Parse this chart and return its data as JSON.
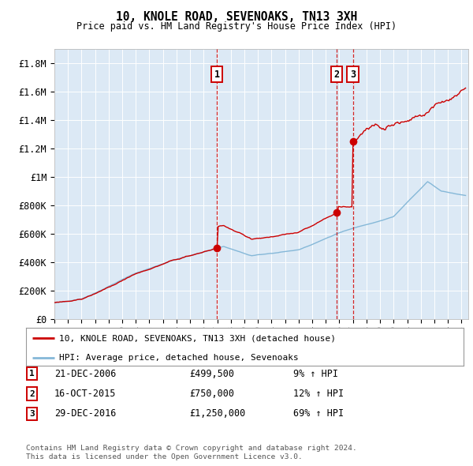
{
  "title": "10, KNOLE ROAD, SEVENOAKS, TN13 3XH",
  "subtitle": "Price paid vs. HM Land Registry's House Price Index (HPI)",
  "background_color": "#dce9f5",
  "hpi_line_color": "#85b8d8",
  "price_line_color": "#cc0000",
  "dashed_line_color": "#cc0000",
  "ylim_min": 0,
  "ylim_max": 1900000,
  "yticks": [
    0,
    200000,
    400000,
    600000,
    800000,
    1000000,
    1200000,
    1400000,
    1600000,
    1800000
  ],
  "ytick_labels": [
    "£0",
    "£200K",
    "£400K",
    "£600K",
    "£800K",
    "£1M",
    "£1.2M",
    "£1.4M",
    "£1.6M",
    "£1.8M"
  ],
  "sale_dates": [
    "21-DEC-2006",
    "16-OCT-2015",
    "29-DEC-2016"
  ],
  "sale_prices": [
    499500,
    750000,
    1250000
  ],
  "sale_hpi_pct": [
    "9% ↑ HPI",
    "12% ↑ HPI",
    "69% ↑ HPI"
  ],
  "sale_years": [
    2006.97,
    2015.79,
    2016.99
  ],
  "marker_labels": [
    "1",
    "2",
    "3"
  ],
  "legend_line1": "10, KNOLE ROAD, SEVENOAKS, TN13 3XH (detached house)",
  "legend_line2": "HPI: Average price, detached house, Sevenoaks",
  "footer1": "Contains HM Land Registry data © Crown copyright and database right 2024.",
  "footer2": "This data is licensed under the Open Government Licence v3.0.",
  "x_start_year": 1995.0,
  "x_end_year": 2025.5
}
